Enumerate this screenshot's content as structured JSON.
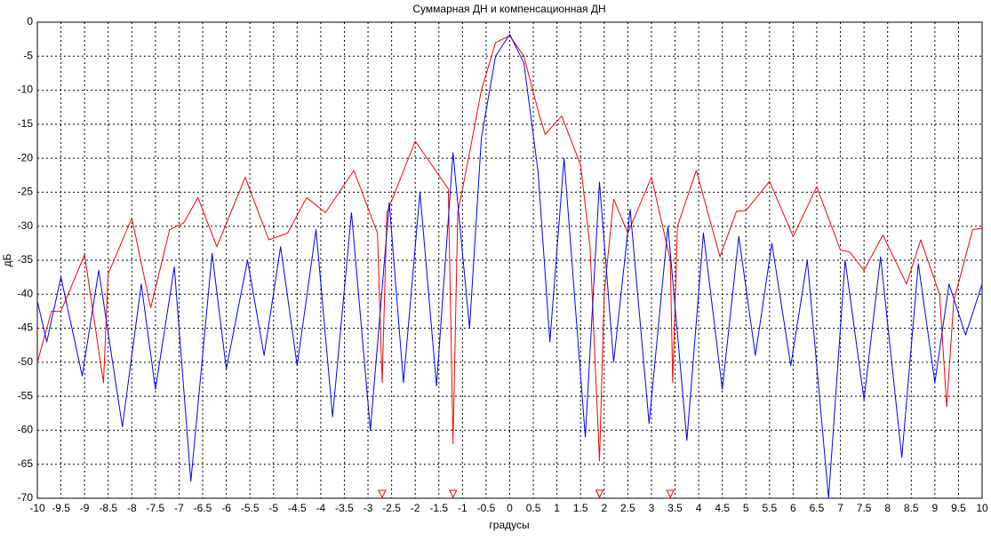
{
  "chart_data": {
    "type": "line",
    "title": "Суммарная ДН и компенсационная ДН",
    "xlabel": "градусы",
    "ylabel": "дБ",
    "xlim": [
      -10,
      10
    ],
    "ylim": [
      -70,
      0
    ],
    "xticks": [
      -10,
      -9.5,
      -9,
      -8.5,
      -8,
      -7.5,
      -7,
      -6.5,
      -6,
      -5.5,
      -5,
      -4.5,
      -4,
      -3.5,
      -3,
      -2.5,
      -2,
      -1.5,
      -1,
      -0.5,
      0,
      0.5,
      1,
      1.5,
      2,
      2.5,
      3,
      3.5,
      4,
      4.5,
      5,
      5.5,
      6,
      6.5,
      7,
      7.5,
      8,
      8.5,
      9,
      9.5,
      10
    ],
    "yticks": [
      0,
      -5,
      -10,
      -15,
      -20,
      -25,
      -30,
      -35,
      -40,
      -45,
      -50,
      -55,
      -60,
      -65,
      -70
    ],
    "grid": true,
    "series": [
      {
        "color": "#ff0000",
        "x": [
          -10,
          -9.7,
          -9.5,
          -9.0,
          -8.6,
          -8.5,
          -8.0,
          -7.6,
          -7.2,
          -6.9,
          -6.6,
          -6.2,
          -5.6,
          -5.1,
          -4.7,
          -4.3,
          -3.9,
          -3.3,
          -2.8,
          -2.7,
          -2.6,
          -2.0,
          -1.3,
          -1.2,
          -1.1,
          -0.9,
          -0.6,
          -0.3,
          0,
          0.3,
          0.6,
          0.75,
          1.1,
          1.5,
          1.7,
          1.9,
          2.0,
          2.2,
          2.5,
          3.0,
          3.4,
          3.45,
          3.55,
          3.95,
          4.45,
          4.8,
          5.0,
          5.5,
          6.0,
          6.5,
          7.0,
          7.2,
          7.5,
          7.9,
          8.4,
          8.7,
          9.1,
          9.25,
          9.4,
          9.8,
          10
        ],
        "values": [
          -50,
          -42.5,
          -42.5,
          -34.2,
          -53,
          -37,
          -28.8,
          -42,
          -30.5,
          -29.5,
          -25.8,
          -33,
          -22.8,
          -32,
          -31,
          -25.8,
          -28,
          -21.8,
          -31,
          -53,
          -28,
          -17.5,
          -24.5,
          -62,
          -28,
          -21,
          -10,
          -3,
          -2,
          -5,
          -13,
          -16.5,
          -13.8,
          -21,
          -33,
          -64.5,
          -40,
          -26,
          -31,
          -22.8,
          -35,
          -53,
          -30,
          -21.8,
          -34.5,
          -27.8,
          -27.7,
          -23.4,
          -31.5,
          -24.2,
          -33.5,
          -33.8,
          -36.5,
          -31.3,
          -38.5,
          -32,
          -40,
          -56.5,
          -41,
          -30.5,
          -30.3
        ]
      },
      {
        "color": "#0000ff",
        "x": [
          -10,
          -9.8,
          -9.5,
          -9.05,
          -8.7,
          -8.2,
          -7.8,
          -7.5,
          -7.1,
          -6.75,
          -6.3,
          -6.0,
          -5.55,
          -5.2,
          -4.85,
          -4.5,
          -4.1,
          -3.75,
          -3.35,
          -2.95,
          -2.55,
          -2.25,
          -1.9,
          -1.55,
          -1.2,
          -0.85,
          -0.6,
          -0.3,
          0,
          0.3,
          0.6,
          0.85,
          1.15,
          1.6,
          1.9,
          2.2,
          2.55,
          2.95,
          3.35,
          3.75,
          4.1,
          4.5,
          4.85,
          5.2,
          5.55,
          5.95,
          6.3,
          6.75,
          7.1,
          7.5,
          7.85,
          8.3,
          8.65,
          9.0,
          9.3,
          9.65,
          10
        ],
        "values": [
          -41,
          -47,
          -37.5,
          -52,
          -36.5,
          -59.5,
          -38.5,
          -54,
          -36,
          -67.5,
          -34,
          -51,
          -35,
          -49,
          -33,
          -50.5,
          -30.5,
          -58,
          -28,
          -60,
          -26.5,
          -53,
          -25,
          -53.5,
          -19.2,
          -45,
          -17,
          -5,
          -1.8,
          -6,
          -22,
          -47,
          -20,
          -61,
          -23.5,
          -50,
          -27.5,
          -59,
          -30,
          -61.5,
          -31,
          -54,
          -31.5,
          -49,
          -32.5,
          -50.5,
          -35,
          -70,
          -35,
          -55.5,
          -34.5,
          -64,
          -35.5,
          -53,
          -38.5,
          -46,
          -38.5
        ]
      },
      {
        "color": "#ff0000",
        "marker": "triangle-down",
        "x": [
          -2.7,
          -1.2,
          1.9,
          3.4
        ],
        "values": [
          -70,
          -70,
          -70,
          -70
        ]
      }
    ]
  }
}
